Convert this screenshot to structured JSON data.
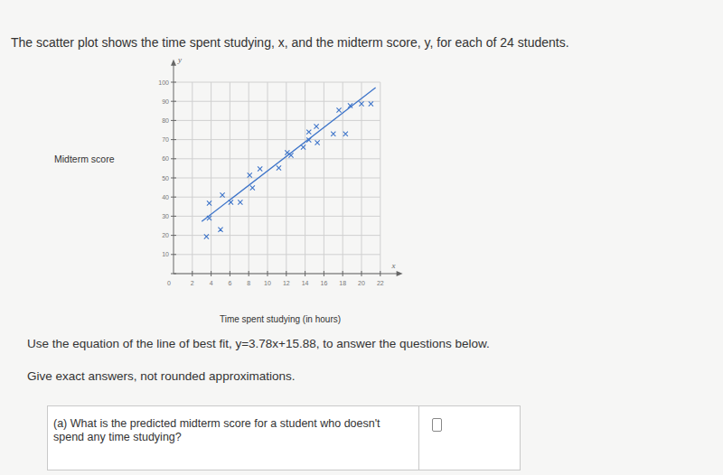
{
  "page": {
    "intro": "The scatter plot shows the time spent studying, x, and the midterm score, y, for each of 24 students.",
    "instruction": "Use the equation of the line of best fit, y=3.78x+15.88, to answer the questions below.",
    "note": "Give exact answers, not rounded approximations.",
    "question": "(a) What is the predicted midterm score for a student who doesn't spend any time studying?"
  },
  "chart_data": {
    "type": "scatter",
    "x_label": "Time spent studying (in hours)",
    "y_label": "Midterm score",
    "x_axis_symbol": "x",
    "y_axis_symbol": "y",
    "xlim": [
      0,
      24
    ],
    "ylim": [
      0,
      110
    ],
    "xticks": [
      2,
      4,
      6,
      8,
      10,
      12,
      14,
      16,
      18,
      20,
      22
    ],
    "yticks": [
      0,
      10,
      20,
      30,
      40,
      50,
      60,
      70,
      80,
      90,
      100
    ],
    "grid": true,
    "series": [
      {
        "type": "scatter",
        "color": "#3d74c9",
        "marker": "x",
        "x": [
          3.5,
          3.8,
          3.8,
          5.0,
          5.2,
          6.1,
          7.1,
          8.1,
          8.4,
          9.2,
          11.2,
          12.1,
          12.5,
          13.8,
          14.4,
          15.2,
          14.4,
          15.3,
          17.0,
          18.3,
          17.6,
          18.8,
          20.0,
          21.0
        ],
        "values": [
          19.3,
          29.0,
          36.8,
          23.0,
          41.0,
          37.3,
          37.3,
          51.4,
          44.8,
          54.7,
          55.2,
          63.2,
          61.8,
          66.0,
          74.0,
          76.9,
          69.8,
          68.4,
          73.0,
          73.0,
          85.4,
          87.7,
          88.7,
          88.7
        ]
      },
      {
        "type": "line",
        "color": "#3d74c9",
        "line_style": "solid",
        "x": [
          3,
          21.5
        ],
        "values": [
          27.2,
          97.2
        ]
      }
    ]
  }
}
